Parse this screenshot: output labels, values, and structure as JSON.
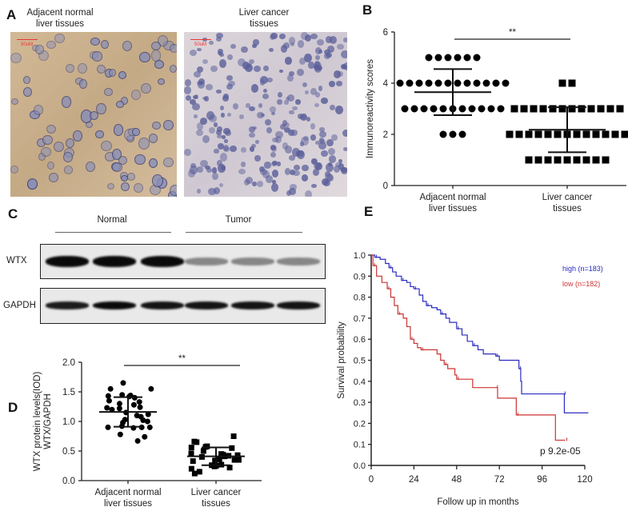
{
  "panels": {
    "a": "A",
    "b": "B",
    "c": "C",
    "d": "D",
    "e": "E"
  },
  "panel_a": {
    "left_title": [
      "Adjacent normal",
      "liver tissues"
    ],
    "right_title": [
      "Liver cancer",
      "tissues"
    ],
    "scale_bar_label": "50uM",
    "colors": {
      "normal_bg": "#cdb393",
      "cancer_bg": "#d9d3d8",
      "nucleus": "#5b5f9a"
    }
  },
  "panel_c": {
    "group_labels": [
      "Normal",
      "Tumor"
    ],
    "row_labels": [
      "WTX",
      "GAPDH"
    ],
    "wtx_intensity": [
      1.0,
      1.0,
      1.0,
      0.3,
      0.3,
      0.3
    ],
    "gapdh_intensity": [
      0.9,
      1.0,
      0.95,
      0.95,
      0.95,
      0.95
    ]
  },
  "chart_data": [
    {
      "id": "B",
      "type": "scatter",
      "ylabel": "Immunoreactivity scores",
      "ylim": [
        0,
        6
      ],
      "yticks": [
        0,
        2,
        4,
        6
      ],
      "categories": [
        [
          "Adjacent normal",
          "liver tissues"
        ],
        [
          "Liver cancer",
          "tissues"
        ]
      ],
      "series": [
        {
          "marker": "circle",
          "values": {
            "5": 6,
            "4": 12,
            "3": 11,
            "2": 3
          },
          "mean": 3.65,
          "sd": 0.9
        },
        {
          "marker": "square",
          "values": {
            "4": 2,
            "3": 12,
            "2": 13,
            "1": 9
          },
          "mean": 2.18,
          "sd": 0.88
        }
      ],
      "significance": "**"
    },
    {
      "id": "D",
      "type": "scatter",
      "ylabel": [
        "WTX protein levels(IOD)",
        "WTX/GAPDH"
      ],
      "ylim": [
        0,
        2
      ],
      "yticks": [
        "0.0",
        "0.5",
        "1.0",
        "1.5",
        "2.0"
      ],
      "categories": [
        [
          "Adjacent normal",
          "liver tissues"
        ],
        [
          "Liver cancer",
          "tissues"
        ]
      ],
      "series": [
        {
          "marker": "circle",
          "values": [
            1.65,
            1.55,
            1.55,
            1.45,
            1.44,
            1.43,
            1.42,
            1.4,
            1.35,
            1.33,
            1.3,
            1.28,
            1.24,
            1.23,
            1.22,
            1.2,
            1.15,
            1.12,
            1.1,
            1.08,
            1.03,
            1.02,
            1.0,
            0.98,
            0.92,
            0.9,
            0.9,
            0.9,
            0.89,
            0.78,
            0.74,
            0.67
          ],
          "mean": 1.16,
          "sd": 0.25
        },
        {
          "marker": "square",
          "values": [
            0.75,
            0.66,
            0.65,
            0.58,
            0.57,
            0.56,
            0.55,
            0.5,
            0.46,
            0.45,
            0.44,
            0.43,
            0.42,
            0.41,
            0.4,
            0.36,
            0.35,
            0.35,
            0.34,
            0.33,
            0.27,
            0.26,
            0.25,
            0.25,
            0.24,
            0.22,
            0.2,
            0.15,
            0.12
          ],
          "mean": 0.41,
          "sd": 0.15
        }
      ],
      "significance": "**"
    },
    {
      "id": "E",
      "type": "line",
      "xlabel": "Follow up in months",
      "ylabel": "Survival probability",
      "xlim": [
        0,
        120
      ],
      "xticks": [
        0,
        24,
        48,
        72,
        96,
        120
      ],
      "ylim": [
        0,
        1
      ],
      "yticks": [
        "0.0",
        "0.1",
        "0.2",
        "0.3",
        "0.4",
        "0.5",
        "0.6",
        "0.7",
        "0.8",
        "0.9",
        "1.0"
      ],
      "annotation": "p 9.2e-05",
      "series": [
        {
          "name": "high (n=183)",
          "color": "#2b2bc0",
          "points": [
            [
              0,
              1.0
            ],
            [
              2,
              0.99
            ],
            [
              5,
              0.98
            ],
            [
              8,
              0.96
            ],
            [
              10,
              0.94
            ],
            [
              12,
              0.92
            ],
            [
              14,
              0.9
            ],
            [
              17,
              0.88
            ],
            [
              20,
              0.87
            ],
            [
              22,
              0.85
            ],
            [
              24,
              0.84
            ],
            [
              27,
              0.81
            ],
            [
              29,
              0.78
            ],
            [
              31,
              0.76
            ],
            [
              34,
              0.75
            ],
            [
              37,
              0.74
            ],
            [
              39,
              0.72
            ],
            [
              42,
              0.7
            ],
            [
              44,
              0.68
            ],
            [
              48,
              0.65
            ],
            [
              51,
              0.62
            ],
            [
              54,
              0.59
            ],
            [
              57,
              0.57
            ],
            [
              60,
              0.55
            ],
            [
              63,
              0.53
            ],
            [
              70,
              0.52
            ],
            [
              72,
              0.5
            ],
            [
              82,
              0.5
            ],
            [
              83,
              0.46
            ],
            [
              84,
              0.4
            ],
            [
              84.5,
              0.34
            ],
            [
              108,
              0.34
            ],
            [
              108.5,
              0.25
            ],
            [
              122,
              0.25
            ]
          ]
        },
        {
          "name": "low (n=182)",
          "color": "#cc3333",
          "points": [
            [
              0,
              1.0
            ],
            [
              1,
              0.95
            ],
            [
              3,
              0.9
            ],
            [
              6,
              0.87
            ],
            [
              9,
              0.84
            ],
            [
              11,
              0.8
            ],
            [
              13,
              0.76
            ],
            [
              15,
              0.72
            ],
            [
              18,
              0.7
            ],
            [
              20,
              0.66
            ],
            [
              22,
              0.6
            ],
            [
              24,
              0.58
            ],
            [
              26,
              0.56
            ],
            [
              28,
              0.55
            ],
            [
              37,
              0.53
            ],
            [
              39,
              0.5
            ],
            [
              41,
              0.48
            ],
            [
              43,
              0.46
            ],
            [
              47,
              0.43
            ],
            [
              48,
              0.41
            ],
            [
              56,
              0.41
            ],
            [
              57,
              0.37
            ],
            [
              70,
              0.37
            ],
            [
              71,
              0.32
            ],
            [
              81,
              0.32
            ],
            [
              81.5,
              0.24
            ],
            [
              103,
              0.24
            ],
            [
              103.5,
              0.12
            ],
            [
              109,
              0.12
            ]
          ]
        }
      ]
    }
  ]
}
